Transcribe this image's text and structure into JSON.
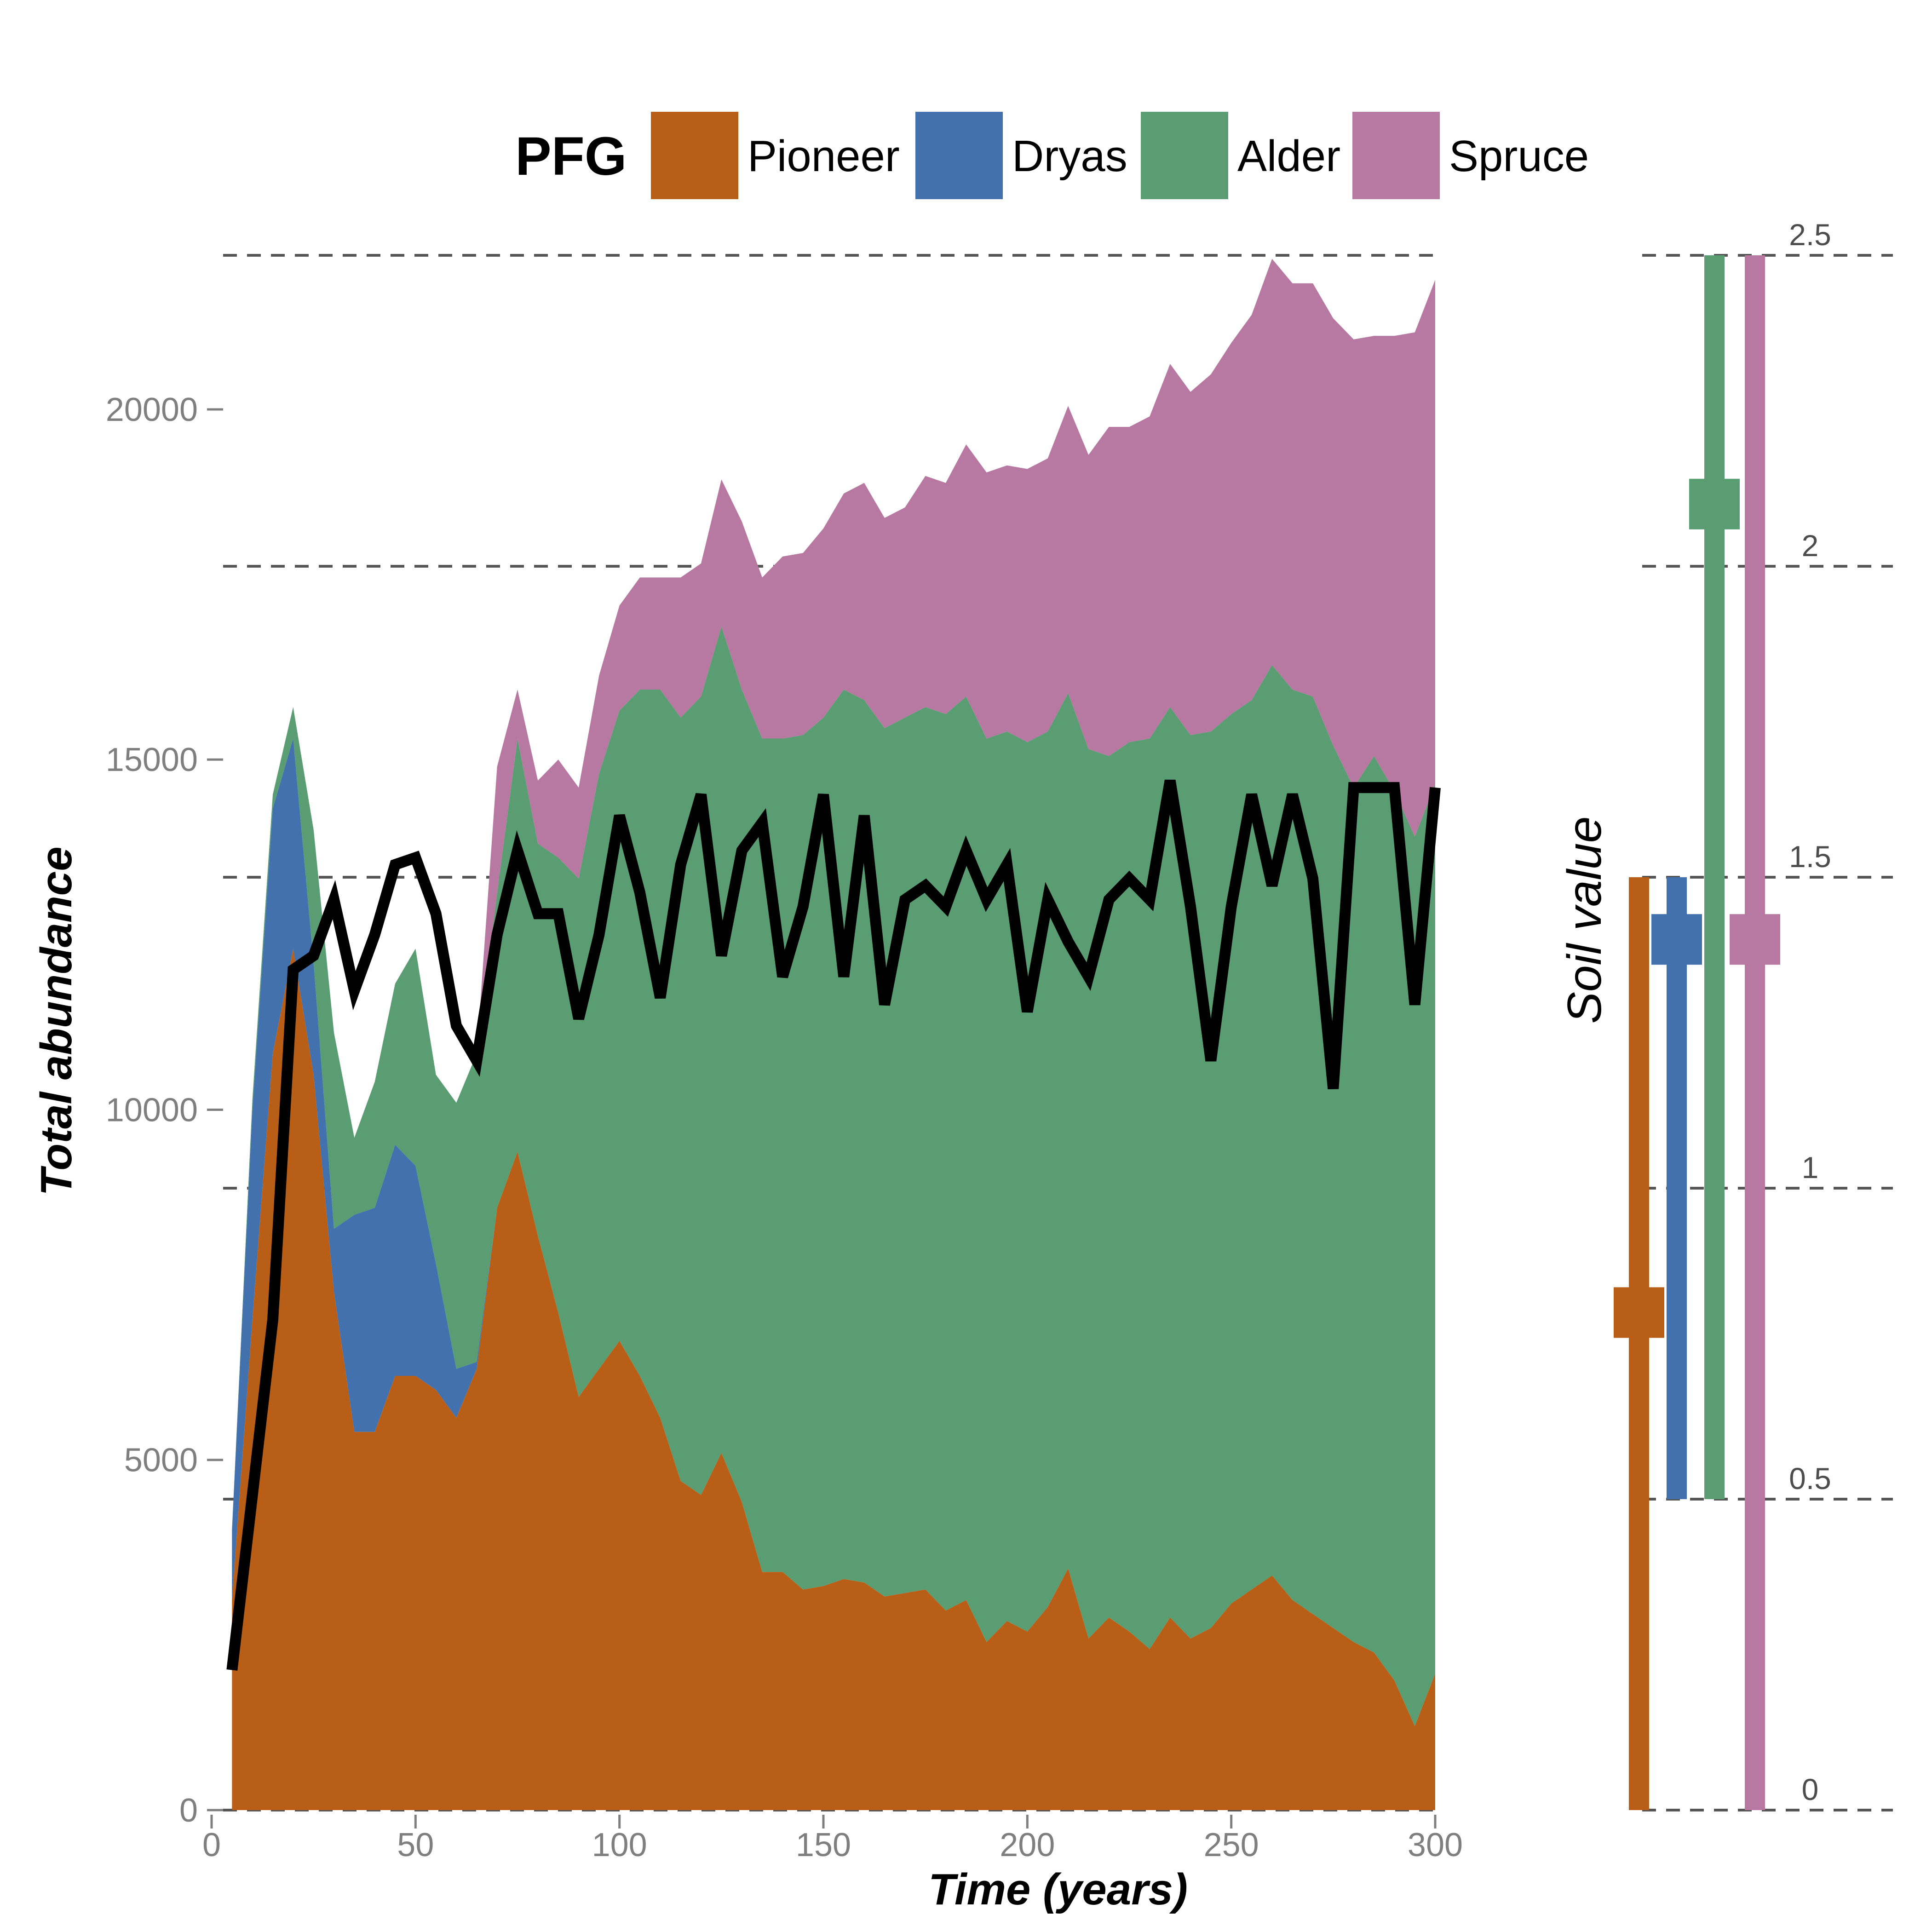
{
  "colors": {
    "Pioneer": "#B95E17",
    "Dryas": "#4271AE",
    "Alder": "#5B9D73",
    "Spruce": "#B779A2",
    "total_line": "#000000",
    "dashes": "#555555",
    "tick_text": "#7f7f7f"
  },
  "legend": {
    "title": "PFG",
    "position": "top",
    "items": [
      "Pioneer",
      "Dryas",
      "Alder",
      "Spruce"
    ]
  },
  "chart_data": [
    {
      "type": "area",
      "stacked": true,
      "xlabel": "Time (years)",
      "ylabel": "Total abundance",
      "xlim": [
        0,
        300
      ],
      "ylim": [
        0,
        22200
      ],
      "xticks": [
        0,
        50,
        100,
        150,
        200,
        250,
        300
      ],
      "yticks": [
        0,
        5000,
        10000,
        15000,
        20000
      ],
      "grid": "dashed horizontal lines at soil-value levels 0, 0.5, 1, 1.5, 2, 2.5",
      "x": [
        5,
        10,
        15,
        20,
        25,
        30,
        35,
        40,
        45,
        50,
        55,
        60,
        65,
        70,
        75,
        80,
        85,
        90,
        95,
        100,
        105,
        110,
        115,
        120,
        125,
        130,
        135,
        140,
        145,
        150,
        155,
        160,
        165,
        170,
        175,
        180,
        185,
        190,
        195,
        200,
        205,
        210,
        215,
        220,
        225,
        230,
        235,
        240,
        245,
        250,
        255,
        260,
        265,
        270,
        275,
        280,
        285,
        290,
        295,
        300
      ],
      "series": [
        {
          "name": "Pioneer",
          "values": [
            3000,
            7000,
            10800,
            12300,
            10500,
            7400,
            5400,
            5400,
            6200,
            6200,
            6000,
            5600,
            6300,
            8600,
            9400,
            8200,
            7100,
            5900,
            6300,
            6700,
            6200,
            5600,
            4700,
            4500,
            5100,
            4400,
            3400,
            3400,
            3150,
            3200,
            3300,
            3250,
            3050,
            3100,
            3150,
            2850,
            3000,
            2400,
            2700,
            2550,
            2900,
            3450,
            2450,
            2750,
            2550,
            2300,
            2750,
            2450,
            2600,
            2950,
            3150,
            3350,
            3000,
            2800,
            2600,
            2400,
            2250,
            1850,
            1200,
            1950
          ]
        },
        {
          "name": "Dryas",
          "values": [
            1000,
            3000,
            3500,
            3000,
            1600,
            900,
            3100,
            3200,
            3300,
            3000,
            1800,
            700,
            100,
            0,
            0,
            0,
            0,
            0,
            0,
            0,
            0,
            0,
            0,
            0,
            0,
            0,
            0,
            0,
            0,
            0,
            0,
            0,
            0,
            0,
            0,
            0,
            0,
            0,
            0,
            0,
            0,
            0,
            0,
            0,
            0,
            0,
            0,
            0,
            0,
            0,
            0,
            0,
            0,
            0,
            0,
            0,
            0,
            0,
            0,
            0
          ]
        },
        {
          "name": "Alder",
          "values": [
            0,
            150,
            200,
            450,
            1900,
            2800,
            1100,
            1800,
            2300,
            3100,
            2700,
            3800,
            4400,
            4500,
            5900,
            5600,
            6500,
            7400,
            8500,
            9000,
            9800,
            10400,
            10900,
            11400,
            11800,
            11600,
            11900,
            11900,
            12200,
            12400,
            12700,
            12600,
            12400,
            12500,
            12600,
            12800,
            12900,
            12900,
            12700,
            12700,
            12500,
            12500,
            12700,
            12300,
            12700,
            13000,
            13000,
            12900,
            12800,
            12700,
            12700,
            13000,
            13000,
            13100,
            12600,
            12200,
            12800,
            12700,
            12700,
            12700
          ]
        },
        {
          "name": "Spruce",
          "values": [
            0,
            0,
            0,
            0,
            0,
            0,
            0,
            0,
            0,
            0,
            0,
            0,
            0,
            1800,
            700,
            900,
            1400,
            1300,
            1400,
            1500,
            1600,
            1600,
            2000,
            1900,
            2100,
            2400,
            2300,
            2600,
            2600,
            2700,
            2800,
            3100,
            3000,
            3000,
            3300,
            3300,
            3600,
            3800,
            3800,
            3900,
            3900,
            4100,
            4200,
            4700,
            4500,
            4600,
            4900,
            4900,
            5100,
            5300,
            5500,
            5800,
            5800,
            5900,
            6100,
            6400,
            6000,
            6500,
            7200,
            7200
          ]
        }
      ],
      "overlay_line": {
        "name": "Total abundance (line)",
        "x": [
          5,
          10,
          15,
          20,
          25,
          30,
          35,
          40,
          45,
          50,
          55,
          60,
          65,
          70,
          75,
          80,
          85,
          90,
          95,
          100,
          105,
          110,
          115,
          120,
          125,
          130,
          135,
          140,
          145,
          150,
          155,
          160,
          165,
          170,
          175,
          180,
          185,
          190,
          195,
          200,
          205,
          210,
          215,
          220,
          225,
          230,
          235,
          240,
          245,
          250,
          255,
          260,
          265,
          270,
          275,
          280,
          285,
          290,
          295,
          300
        ],
        "values": [
          2000,
          4500,
          7000,
          12000,
          12200,
          13000,
          11700,
          12500,
          13500,
          13600,
          12800,
          11200,
          10700,
          12500,
          13700,
          12800,
          12800,
          11300,
          12500,
          14200,
          13100,
          11600,
          13500,
          14500,
          12200,
          13700,
          14100,
          11900,
          12900,
          14500,
          11900,
          14200,
          11500,
          13000,
          13200,
          12900,
          13700,
          13000,
          13500,
          11400,
          13000,
          12400,
          11900,
          13000,
          13300,
          13000,
          14700,
          12900,
          10700,
          12900,
          14500,
          13200,
          14500,
          13300,
          10300,
          14600,
          14600,
          14600,
          11500,
          14600
        ]
      }
    },
    {
      "type": "bar",
      "subtype": "range with marker",
      "ylabel": "Soil value",
      "ylim": [
        0,
        2.5
      ],
      "yticks": [
        "0",
        "0.5",
        "1",
        "1.5",
        "2",
        "2.5"
      ],
      "series": [
        {
          "name": "Pioneer",
          "min": 0,
          "max": 1.5,
          "mid": 0.8
        },
        {
          "name": "Dryas",
          "min": 0.5,
          "max": 1.5,
          "mid": 1.4
        },
        {
          "name": "Alder",
          "min": 0.5,
          "max": 2.5,
          "mid": 2.1
        },
        {
          "name": "Spruce",
          "min": 0,
          "max": 2.5,
          "mid": 1.4
        }
      ]
    }
  ]
}
